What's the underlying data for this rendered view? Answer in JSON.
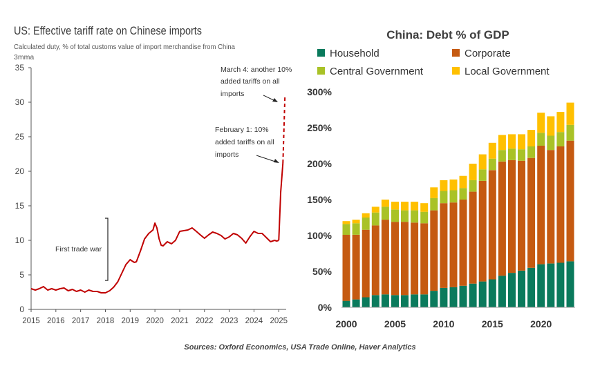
{
  "chart_data": [
    {
      "type": "line",
      "title": "US: Effective tariff rate on Chinese imports",
      "subtitle": "Calculated duty, % of total customs value of import merchandise from China",
      "unit_note": "3mma",
      "ylim": [
        0,
        35
      ],
      "yticks": [
        "0",
        "5",
        "10",
        "15",
        "20",
        "25",
        "30",
        "35"
      ],
      "xlim": [
        2015,
        2025.3
      ],
      "xticks": [
        "2015",
        "2016",
        "2017",
        "2018",
        "2019",
        "2020",
        "2021",
        "2022",
        "2023",
        "2024",
        "2025"
      ],
      "series": [
        {
          "color": "#c00000",
          "x": [
            2015.0,
            2015.17,
            2015.33,
            2015.5,
            2015.67,
            2015.83,
            2016.0,
            2016.17,
            2016.33,
            2016.5,
            2016.67,
            2016.83,
            2017.0,
            2017.17,
            2017.33,
            2017.5,
            2017.67,
            2017.83,
            2018.0,
            2018.17,
            2018.33,
            2018.5,
            2018.67,
            2018.83,
            2019.0,
            2019.08,
            2019.17,
            2019.25,
            2019.42,
            2019.58,
            2019.75,
            2019.92,
            2020.0,
            2020.08,
            2020.17,
            2020.25,
            2020.33,
            2020.5,
            2020.67,
            2020.83,
            2021.0,
            2021.17,
            2021.33,
            2021.5,
            2021.67,
            2021.83,
            2022.0,
            2022.17,
            2022.33,
            2022.5,
            2022.67,
            2022.83,
            2023.0,
            2023.17,
            2023.33,
            2023.5,
            2023.67,
            2023.83,
            2024.0,
            2024.17,
            2024.33,
            2024.5,
            2024.67,
            2024.83,
            2024.92,
            2025.0
          ],
          "values": [
            3.0,
            2.8,
            3.0,
            3.3,
            2.8,
            3.0,
            2.8,
            3.0,
            3.1,
            2.7,
            2.9,
            2.6,
            2.8,
            2.5,
            2.8,
            2.6,
            2.6,
            2.4,
            2.4,
            2.7,
            3.2,
            4.0,
            5.3,
            6.5,
            7.2,
            7.0,
            6.8,
            6.9,
            8.5,
            10.2,
            11.0,
            11.5,
            12.5,
            11.8,
            10.2,
            9.3,
            9.2,
            9.8,
            9.5,
            10.0,
            11.3,
            11.4,
            11.5,
            11.8,
            11.3,
            10.8,
            10.3,
            10.8,
            11.2,
            11.0,
            10.7,
            10.2,
            10.5,
            11.0,
            10.8,
            10.3,
            9.6,
            10.5,
            11.3,
            11.0,
            11.0,
            10.4,
            9.8,
            10.0,
            9.9,
            10.0
          ]
        },
        {
          "color": "#c00000",
          "style": "solid",
          "x": [
            2025.0,
            2025.08,
            2025.17
          ],
          "values": [
            10.0,
            17.0,
            21.2
          ]
        },
        {
          "color": "#c00000",
          "style": "dashed",
          "x": [
            2025.17,
            2025.25
          ],
          "values": [
            21.2,
            30.8
          ]
        }
      ],
      "annotations": [
        {
          "text": [
            "March 4: another 10%",
            "added tariffs on all",
            "imports"
          ]
        },
        {
          "text": [
            "February 1: 10%",
            "added tariffs on all",
            "imports"
          ]
        },
        {
          "text": [
            "First trade war"
          ]
        }
      ]
    },
    {
      "type": "bar",
      "stacked": true,
      "title": "China: Debt % of GDP",
      "ylim": [
        0,
        300
      ],
      "yticks": [
        "0%",
        "50%",
        "100%",
        "150%",
        "200%",
        "250%",
        "300%"
      ],
      "xticks": [
        "2000",
        "2005",
        "2010",
        "2015",
        "2020"
      ],
      "categories": [
        2000,
        2001,
        2002,
        2003,
        2004,
        2005,
        2006,
        2007,
        2008,
        2009,
        2010,
        2011,
        2012,
        2013,
        2014,
        2015,
        2016,
        2017,
        2018,
        2019,
        2020,
        2021,
        2022,
        2023
      ],
      "legend_position": "top",
      "series": [
        {
          "name": "Household",
          "color": "#0a7a5c",
          "values": [
            9,
            11,
            14,
            17,
            18,
            17,
            17,
            18,
            18,
            23,
            27,
            28,
            30,
            33,
            36,
            39,
            44,
            48,
            51,
            55,
            60,
            61,
            62,
            64
          ]
        },
        {
          "name": "Corporate",
          "color": "#c55a11",
          "values": [
            92,
            90,
            94,
            97,
            104,
            102,
            102,
            100,
            99,
            112,
            118,
            118,
            120,
            128,
            140,
            152,
            159,
            157,
            153,
            153,
            165,
            158,
            162,
            168
          ]
        },
        {
          "name": "Central Government",
          "color": "#a9c227",
          "values": [
            15,
            16,
            17,
            18,
            18,
            17,
            16,
            17,
            16,
            17,
            17,
            17,
            16,
            16,
            16,
            16,
            16,
            16,
            16,
            16,
            18,
            20,
            20,
            22
          ]
        },
        {
          "name": "Local Government",
          "color": "#ffc000",
          "values": [
            4,
            5,
            6,
            8,
            10,
            11,
            12,
            12,
            12,
            15,
            15,
            15,
            17,
            23,
            21,
            22,
            21,
            20,
            21,
            23,
            28,
            27,
            28,
            31
          ]
        }
      ]
    }
  ],
  "source_note": "Sources: Oxford Economics, USA Trade Online, Haver Analytics"
}
